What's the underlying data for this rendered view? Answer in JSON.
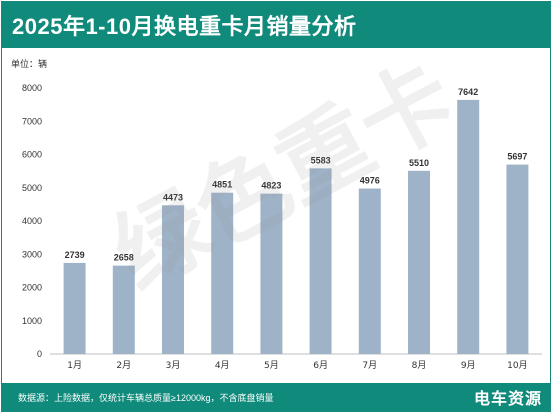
{
  "header": {
    "title": "2025年1-10月换电重卡月销量分析"
  },
  "unit_label": "单位：辆",
  "watermark": "绿色重卡",
  "footer": {
    "note": "数据源：上险数据，仅统计车辆总质量≥12000kg，不含底盘销量",
    "brand": "电车资源"
  },
  "colors": {
    "bar": "#9fb3c8",
    "header": "#0f8a7b",
    "text": "#333333"
  },
  "chart_data": {
    "type": "bar",
    "title": "2025年1-10月换电重卡月销量分析",
    "xlabel": "",
    "ylabel": "",
    "categories": [
      "1月",
      "2月",
      "3月",
      "4月",
      "5月",
      "6月",
      "7月",
      "8月",
      "9月",
      "10月"
    ],
    "values": [
      2739,
      2658,
      4473,
      4851,
      4823,
      5583,
      4976,
      5510,
      7642,
      5697
    ],
    "ylim": [
      0,
      8000
    ],
    "yticks": [
      0,
      1000,
      2000,
      3000,
      4000,
      5000,
      6000,
      7000,
      8000
    ],
    "grid": false,
    "data_labels": true
  }
}
